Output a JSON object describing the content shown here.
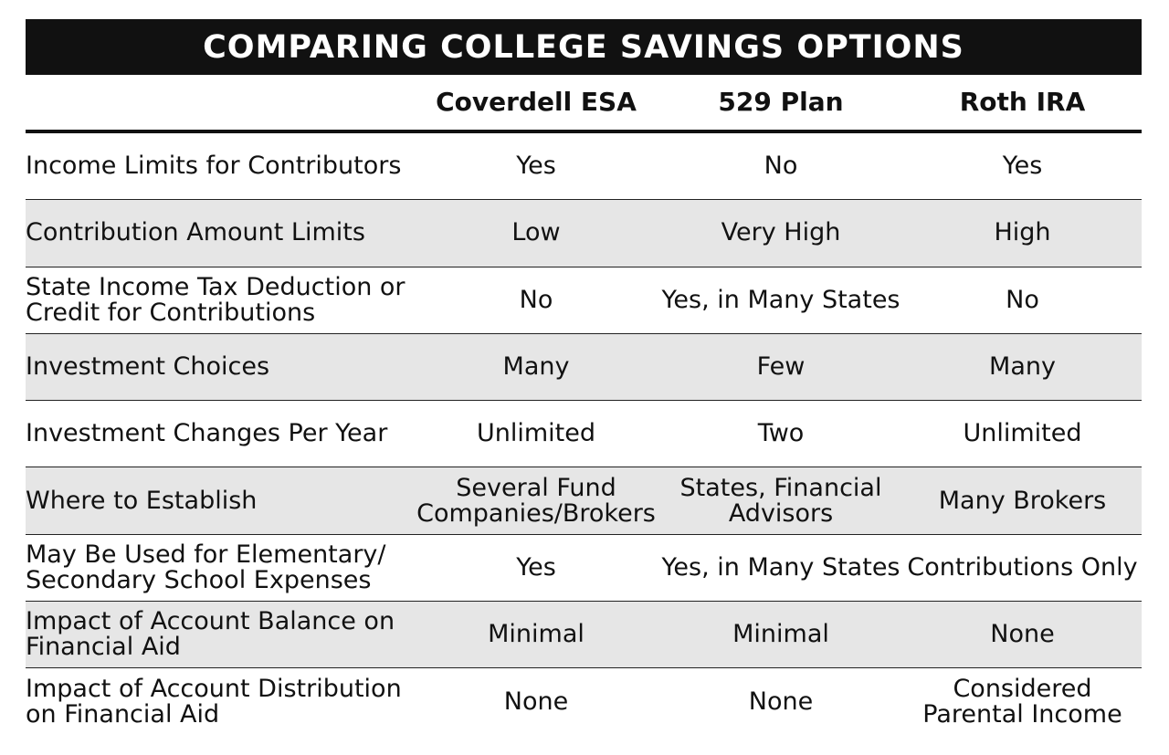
{
  "title": "COMPARING COLLEGE SAVINGS OPTIONS",
  "columns": [
    "Coverdell ESA",
    "529 Plan",
    "Roth IRA"
  ],
  "rows": [
    {
      "label": "Income Limits for Contributors",
      "values": [
        "Yes",
        "No",
        "Yes"
      ]
    },
    {
      "label": "Contribution Amount Limits",
      "values": [
        "Low",
        "Very High",
        "High"
      ]
    },
    {
      "label": "State Income Tax Deduction or\nCredit for Contributions",
      "values": [
        "No",
        "Yes, in Many States",
        "No"
      ]
    },
    {
      "label": "Investment Choices",
      "values": [
        "Many",
        "Few",
        "Many"
      ]
    },
    {
      "label": "Investment Changes Per Year",
      "values": [
        "Unlimited",
        "Two",
        "Unlimited"
      ]
    },
    {
      "label": "Where to Establish",
      "values": [
        "Several Fund\nCompanies/Brokers",
        "States, Financial\nAdvisors",
        "Many Brokers"
      ]
    },
    {
      "label": "May Be Used for Elementary/\nSecondary School Expenses",
      "values": [
        "Yes",
        "Yes, in Many States",
        "Contributions Only"
      ]
    },
    {
      "label": "Impact of Account Balance on\nFinancial Aid",
      "values": [
        "Minimal",
        "Minimal",
        "None"
      ]
    },
    {
      "label": "Impact of Account Distribution\non Financial Aid",
      "values": [
        "None",
        "None",
        "Considered\nParental Income"
      ]
    }
  ]
}
